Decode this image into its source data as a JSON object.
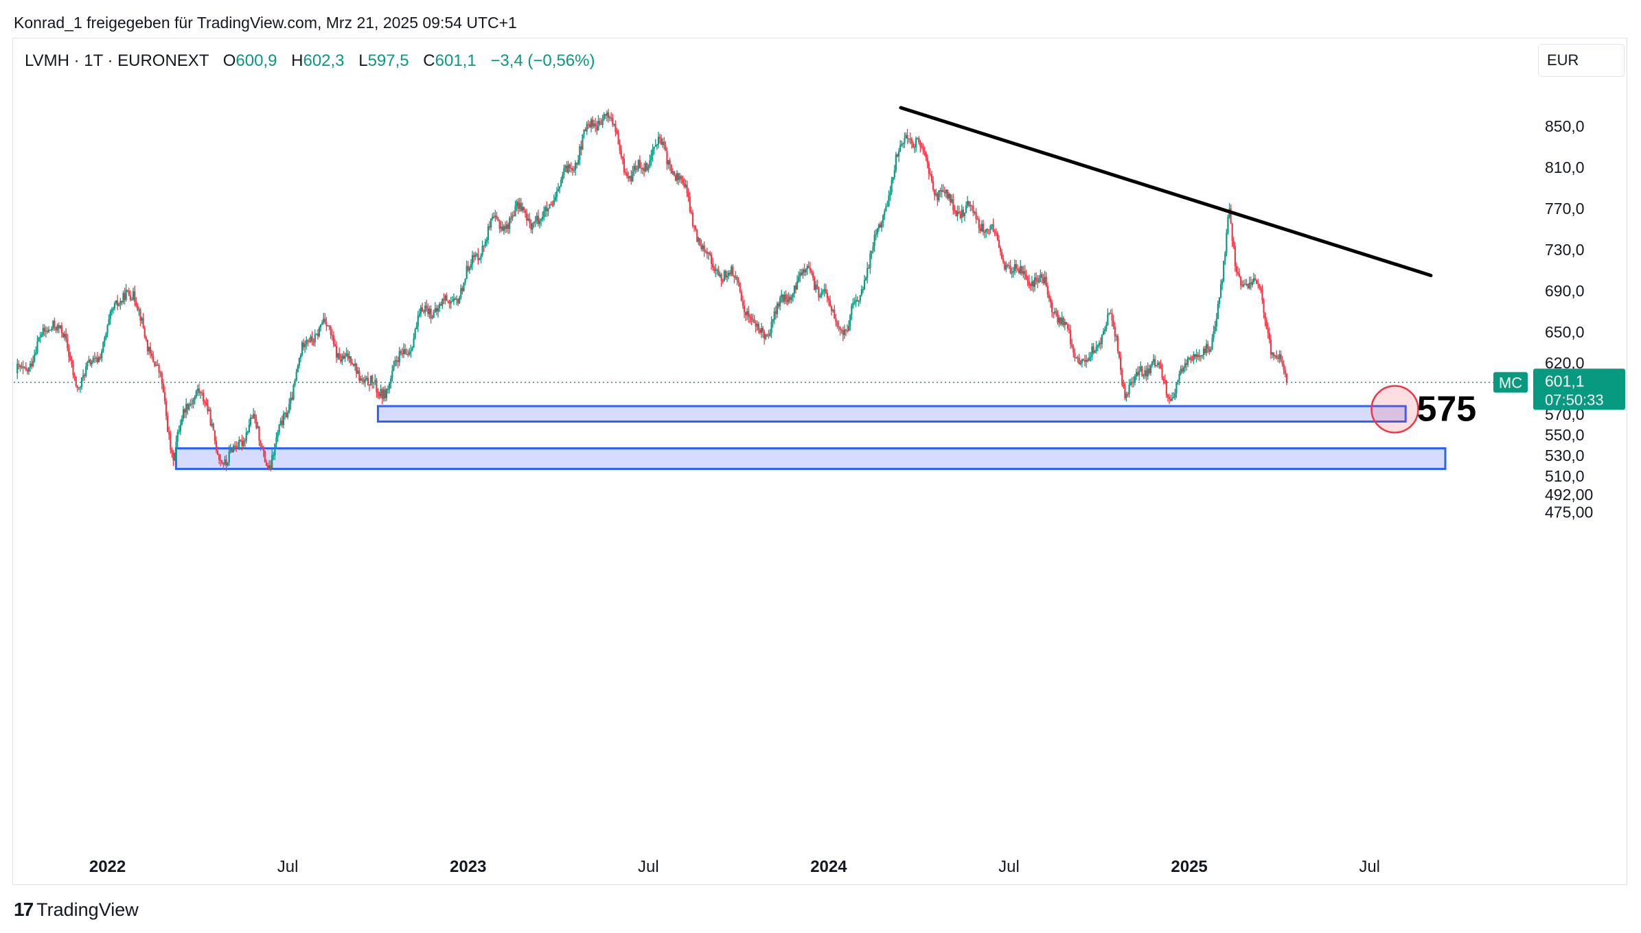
{
  "header": {
    "shared_by": "Konrad_1 freigegeben für TradingView.com, Mrz 21, 2025 09:54 UTC+1"
  },
  "legend": {
    "symbol": "LVMH · 1T · EURONEXT",
    "open_label": "O",
    "open": "600,9",
    "high_label": "H",
    "high": "602,3",
    "low_label": "L",
    "low": "597,5",
    "close_label": "C",
    "close": "601,1",
    "change": "−3,4 (−0,56%)"
  },
  "currency": "EUR",
  "price_tag": {
    "ticker": "MC",
    "price": "601,1",
    "countdown": "07:50:33"
  },
  "annotation_label": "575",
  "footer": {
    "brand": "TradingView",
    "logo_mark": "17"
  },
  "colors": {
    "up": "#089981",
    "down": "#f23645",
    "zone_fill": "#d6dcff",
    "zone_stroke": "#2962ff",
    "trendline": "#000000"
  },
  "chart_data": {
    "type": "candlestick",
    "title": "LVMH · 1T · EURONEXT",
    "ylabel": "EUR",
    "y_ticks": [
      {
        "value": 850,
        "label": "850,0"
      },
      {
        "value": 810,
        "label": "810,0"
      },
      {
        "value": 770,
        "label": "770,0"
      },
      {
        "value": 730,
        "label": "730,0"
      },
      {
        "value": 690,
        "label": "690,0"
      },
      {
        "value": 650,
        "label": "650,0"
      },
      {
        "value": 620,
        "label": "620,0"
      },
      {
        "value": 570,
        "label": "570,0"
      },
      {
        "value": 550,
        "label": "550,0"
      },
      {
        "value": 530,
        "label": "530,0"
      },
      {
        "value": 510,
        "label": "510,0"
      },
      {
        "value": 492,
        "label": "492,00"
      },
      {
        "value": 475,
        "label": "475,00"
      }
    ],
    "x_ticks": [
      {
        "t": 2022.0,
        "label": "2022",
        "bold": true
      },
      {
        "t": 2022.5,
        "label": "Jul",
        "bold": false
      },
      {
        "t": 2023.0,
        "label": "2023",
        "bold": true
      },
      {
        "t": 2023.5,
        "label": "Jul",
        "bold": false
      },
      {
        "t": 2024.0,
        "label": "2024",
        "bold": true
      },
      {
        "t": 2024.5,
        "label": "Jul",
        "bold": false
      },
      {
        "t": 2025.0,
        "label": "2025",
        "bold": true
      },
      {
        "t": 2025.5,
        "label": "Jul",
        "bold": false
      }
    ],
    "x_range": [
      2021.74,
      2025.91
    ],
    "last_price": 601.1,
    "anchors": [
      [
        2021.75,
        610
      ],
      [
        2021.85,
        660
      ],
      [
        2021.92,
        600
      ],
      [
        2022.0,
        650
      ],
      [
        2022.05,
        690
      ],
      [
        2022.1,
        660
      ],
      [
        2022.15,
        600
      ],
      [
        2022.18,
        530
      ],
      [
        2022.25,
        600
      ],
      [
        2022.33,
        520
      ],
      [
        2022.4,
        560
      ],
      [
        2022.45,
        525
      ],
      [
        2022.55,
        635
      ],
      [
        2022.6,
        660
      ],
      [
        2022.67,
        620
      ],
      [
        2022.75,
        585
      ],
      [
        2022.8,
        620
      ],
      [
        2022.88,
        665
      ],
      [
        2022.95,
        680
      ],
      [
        2023.05,
        740
      ],
      [
        2023.15,
        775
      ],
      [
        2023.2,
        750
      ],
      [
        2023.27,
        800
      ],
      [
        2023.32,
        845
      ],
      [
        2023.38,
        860
      ],
      [
        2023.45,
        800
      ],
      [
        2023.52,
        835
      ],
      [
        2023.6,
        785
      ],
      [
        2023.67,
        720
      ],
      [
        2023.75,
        690
      ],
      [
        2023.8,
        650
      ],
      [
        2023.87,
        675
      ],
      [
        2023.95,
        710
      ],
      [
        2024.0,
        680
      ],
      [
        2024.05,
        645
      ],
      [
        2024.1,
        700
      ],
      [
        2024.18,
        810
      ],
      [
        2024.22,
        845
      ],
      [
        2024.3,
        790
      ],
      [
        2024.37,
        770
      ],
      [
        2024.45,
        745
      ],
      [
        2024.52,
        710
      ],
      [
        2024.6,
        690
      ],
      [
        2024.68,
        640
      ],
      [
        2024.72,
        615
      ],
      [
        2024.78,
        665
      ],
      [
        2024.82,
        600
      ],
      [
        2024.9,
        620
      ],
      [
        2024.94,
        585
      ],
      [
        2024.98,
        610
      ],
      [
        2025.02,
        640
      ],
      [
        2025.06,
        625
      ],
      [
        2025.09,
        700
      ],
      [
        2025.11,
        760
      ],
      [
        2025.13,
        700
      ],
      [
        2025.17,
        705
      ],
      [
        2025.2,
        690
      ],
      [
        2025.23,
        630
      ],
      [
        2025.27,
        601
      ]
    ],
    "trendline": {
      "start": {
        "t": 2024.2,
        "price": 868
      },
      "end": {
        "t": 2025.67,
        "price": 705
      }
    },
    "support_zones": [
      {
        "t_start": 2022.75,
        "t_end": 2025.6,
        "price_low": 563,
        "price_high": 578
      },
      {
        "t_start": 2022.19,
        "t_end": 2025.71,
        "price_low": 517,
        "price_high": 537
      }
    ],
    "target_marker": {
      "t": 2025.57,
      "price": 575,
      "label": "575"
    }
  }
}
